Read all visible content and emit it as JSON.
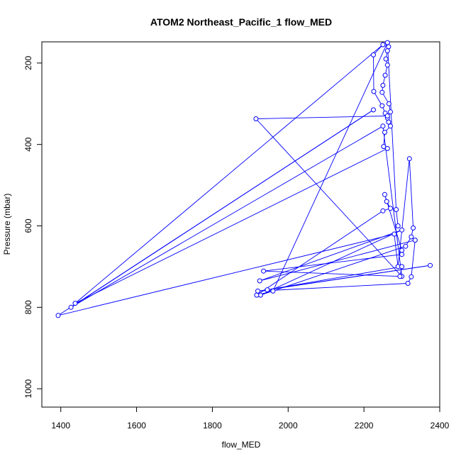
{
  "chart_data": {
    "type": "line",
    "title": "ATOM2 Northeast_Pacific_1 flow_MED",
    "xlabel": "flow_MED",
    "ylabel": "Pressure (mbar)",
    "xlim": [
      1350,
      2400
    ],
    "ylim": [
      1045,
      148
    ],
    "y_reversed": true,
    "xticks": [
      1400,
      1600,
      1800,
      2000,
      2200,
      2400
    ],
    "yticks": [
      200,
      400,
      600,
      800,
      1000
    ],
    "grid": false,
    "legend": "none",
    "series": [
      {
        "color": "#0000ff",
        "marker": "open-circle",
        "points": [
          [
            2265,
            160
          ],
          [
            2262,
            170
          ],
          [
            2258,
            190
          ],
          [
            2262,
            205
          ],
          [
            2256,
            230
          ],
          [
            2250,
            255
          ],
          [
            2248,
            272
          ],
          [
            2266,
            300
          ],
          [
            2270,
            320
          ],
          [
            2262,
            335
          ],
          [
            2265,
            345
          ],
          [
            2270,
            355
          ],
          [
            2255,
            370
          ],
          [
            2252,
            405
          ],
          [
            2262,
            410
          ],
          [
            1438,
            790
          ],
          [
            2250,
            155
          ],
          [
            2225,
            180
          ],
          [
            2226,
            270
          ],
          [
            2248,
            305
          ],
          [
            2256,
            323
          ],
          [
            2262,
            330
          ],
          [
            1915,
            337
          ],
          [
            2300,
            724
          ],
          [
            2250,
            355
          ],
          [
            1427,
            800
          ],
          [
            2225,
            315
          ],
          [
            1393,
            820
          ],
          [
            2280,
            620
          ],
          [
            2290,
            700
          ],
          [
            2320,
            435
          ],
          [
            2330,
            605
          ],
          [
            2325,
            627
          ],
          [
            2310,
            650
          ],
          [
            1927,
            770
          ],
          [
            2300,
            610
          ],
          [
            1925,
            735
          ],
          [
            2335,
            635
          ],
          [
            2325,
            725
          ],
          [
            2316,
            741
          ],
          [
            1920,
            760
          ],
          [
            2375,
            697
          ],
          [
            1945,
            757
          ],
          [
            2300,
            700
          ],
          [
            2295,
            724
          ],
          [
            1935,
            711
          ],
          [
            2300,
            670
          ],
          [
            2300,
            660
          ],
          [
            2255,
            523
          ],
          [
            2260,
            540
          ],
          [
            2270,
            557
          ],
          [
            2250,
            563
          ],
          [
            1917,
            770
          ],
          [
            1960,
            760
          ],
          [
            2262,
            150
          ],
          [
            2285,
            560
          ],
          [
            2290,
            600
          ]
        ]
      }
    ]
  }
}
